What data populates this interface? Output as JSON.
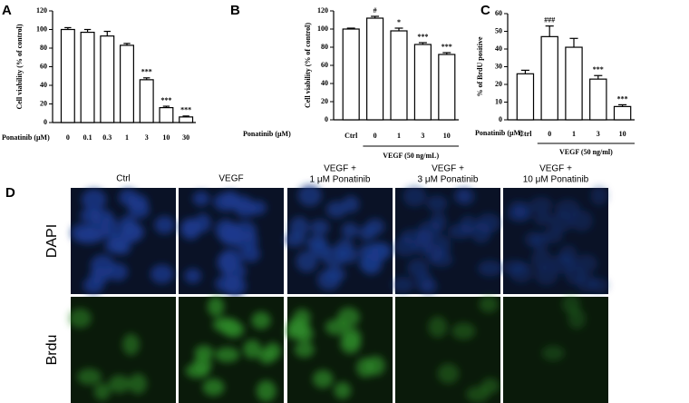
{
  "chart_data": [
    {
      "type": "bar",
      "panel": "A",
      "ylabel": "Cell viability (% of control)",
      "xlabel": "Ponatinib (μM)",
      "categories": [
        "0",
        "0.1",
        "0.3",
        "1",
        "3",
        "10",
        "30"
      ],
      "values": [
        100,
        97,
        93,
        83,
        46,
        16,
        6
      ],
      "errors": [
        2,
        3,
        5,
        2,
        2,
        1.5,
        1
      ],
      "annotations": [
        null,
        null,
        null,
        null,
        "***",
        "***",
        "***"
      ],
      "ylim": [
        0,
        120
      ],
      "yticks": [
        0,
        20,
        40,
        60,
        80,
        100,
        120
      ],
      "color": "#ffffff"
    },
    {
      "type": "bar",
      "panel": "B",
      "ylabel": "Cell viability (% of control)",
      "xlabel": "Ponatinib (μM)",
      "categories": [
        "Ctrl",
        "0",
        "1",
        "3",
        "10"
      ],
      "values": [
        100,
        112,
        98,
        83,
        72
      ],
      "errors": [
        1,
        2,
        3,
        2,
        2
      ],
      "annotations": [
        null,
        "#",
        "*",
        "***",
        "***"
      ],
      "group_label": "VEGF (50 ng/mL)",
      "ylim": [
        0,
        120
      ],
      "yticks": [
        0,
        20,
        40,
        60,
        80,
        100,
        120
      ],
      "color": "#ffffff"
    },
    {
      "type": "bar",
      "panel": "C",
      "ylabel": "% of BrdU positive",
      "xlabel": "Ponatinib (μM)",
      "categories": [
        "Ctrl",
        "0",
        "1",
        "3",
        "10"
      ],
      "values": [
        26,
        47,
        41,
        23,
        7.5
      ],
      "errors": [
        2,
        6,
        5,
        2,
        1
      ],
      "annotations": [
        null,
        "###",
        null,
        "***",
        "***"
      ],
      "group_label": "VEGF (50 ng/ml)",
      "ylim": [
        0,
        60
      ],
      "yticks": [
        0,
        10,
        20,
        30,
        40,
        50,
        60
      ],
      "color": "#ffffff"
    }
  ],
  "panel_d": {
    "panel": "D",
    "columns": [
      [
        "Ctrl"
      ],
      [
        "VEGF"
      ],
      [
        "VEGF +",
        "1 μM Ponatinib"
      ],
      [
        "VEGF +",
        "3 μM Ponatinib"
      ],
      [
        "VEGF +",
        "10 μM Ponatinib"
      ]
    ],
    "rows": [
      "DAPI",
      "Brdu"
    ]
  }
}
